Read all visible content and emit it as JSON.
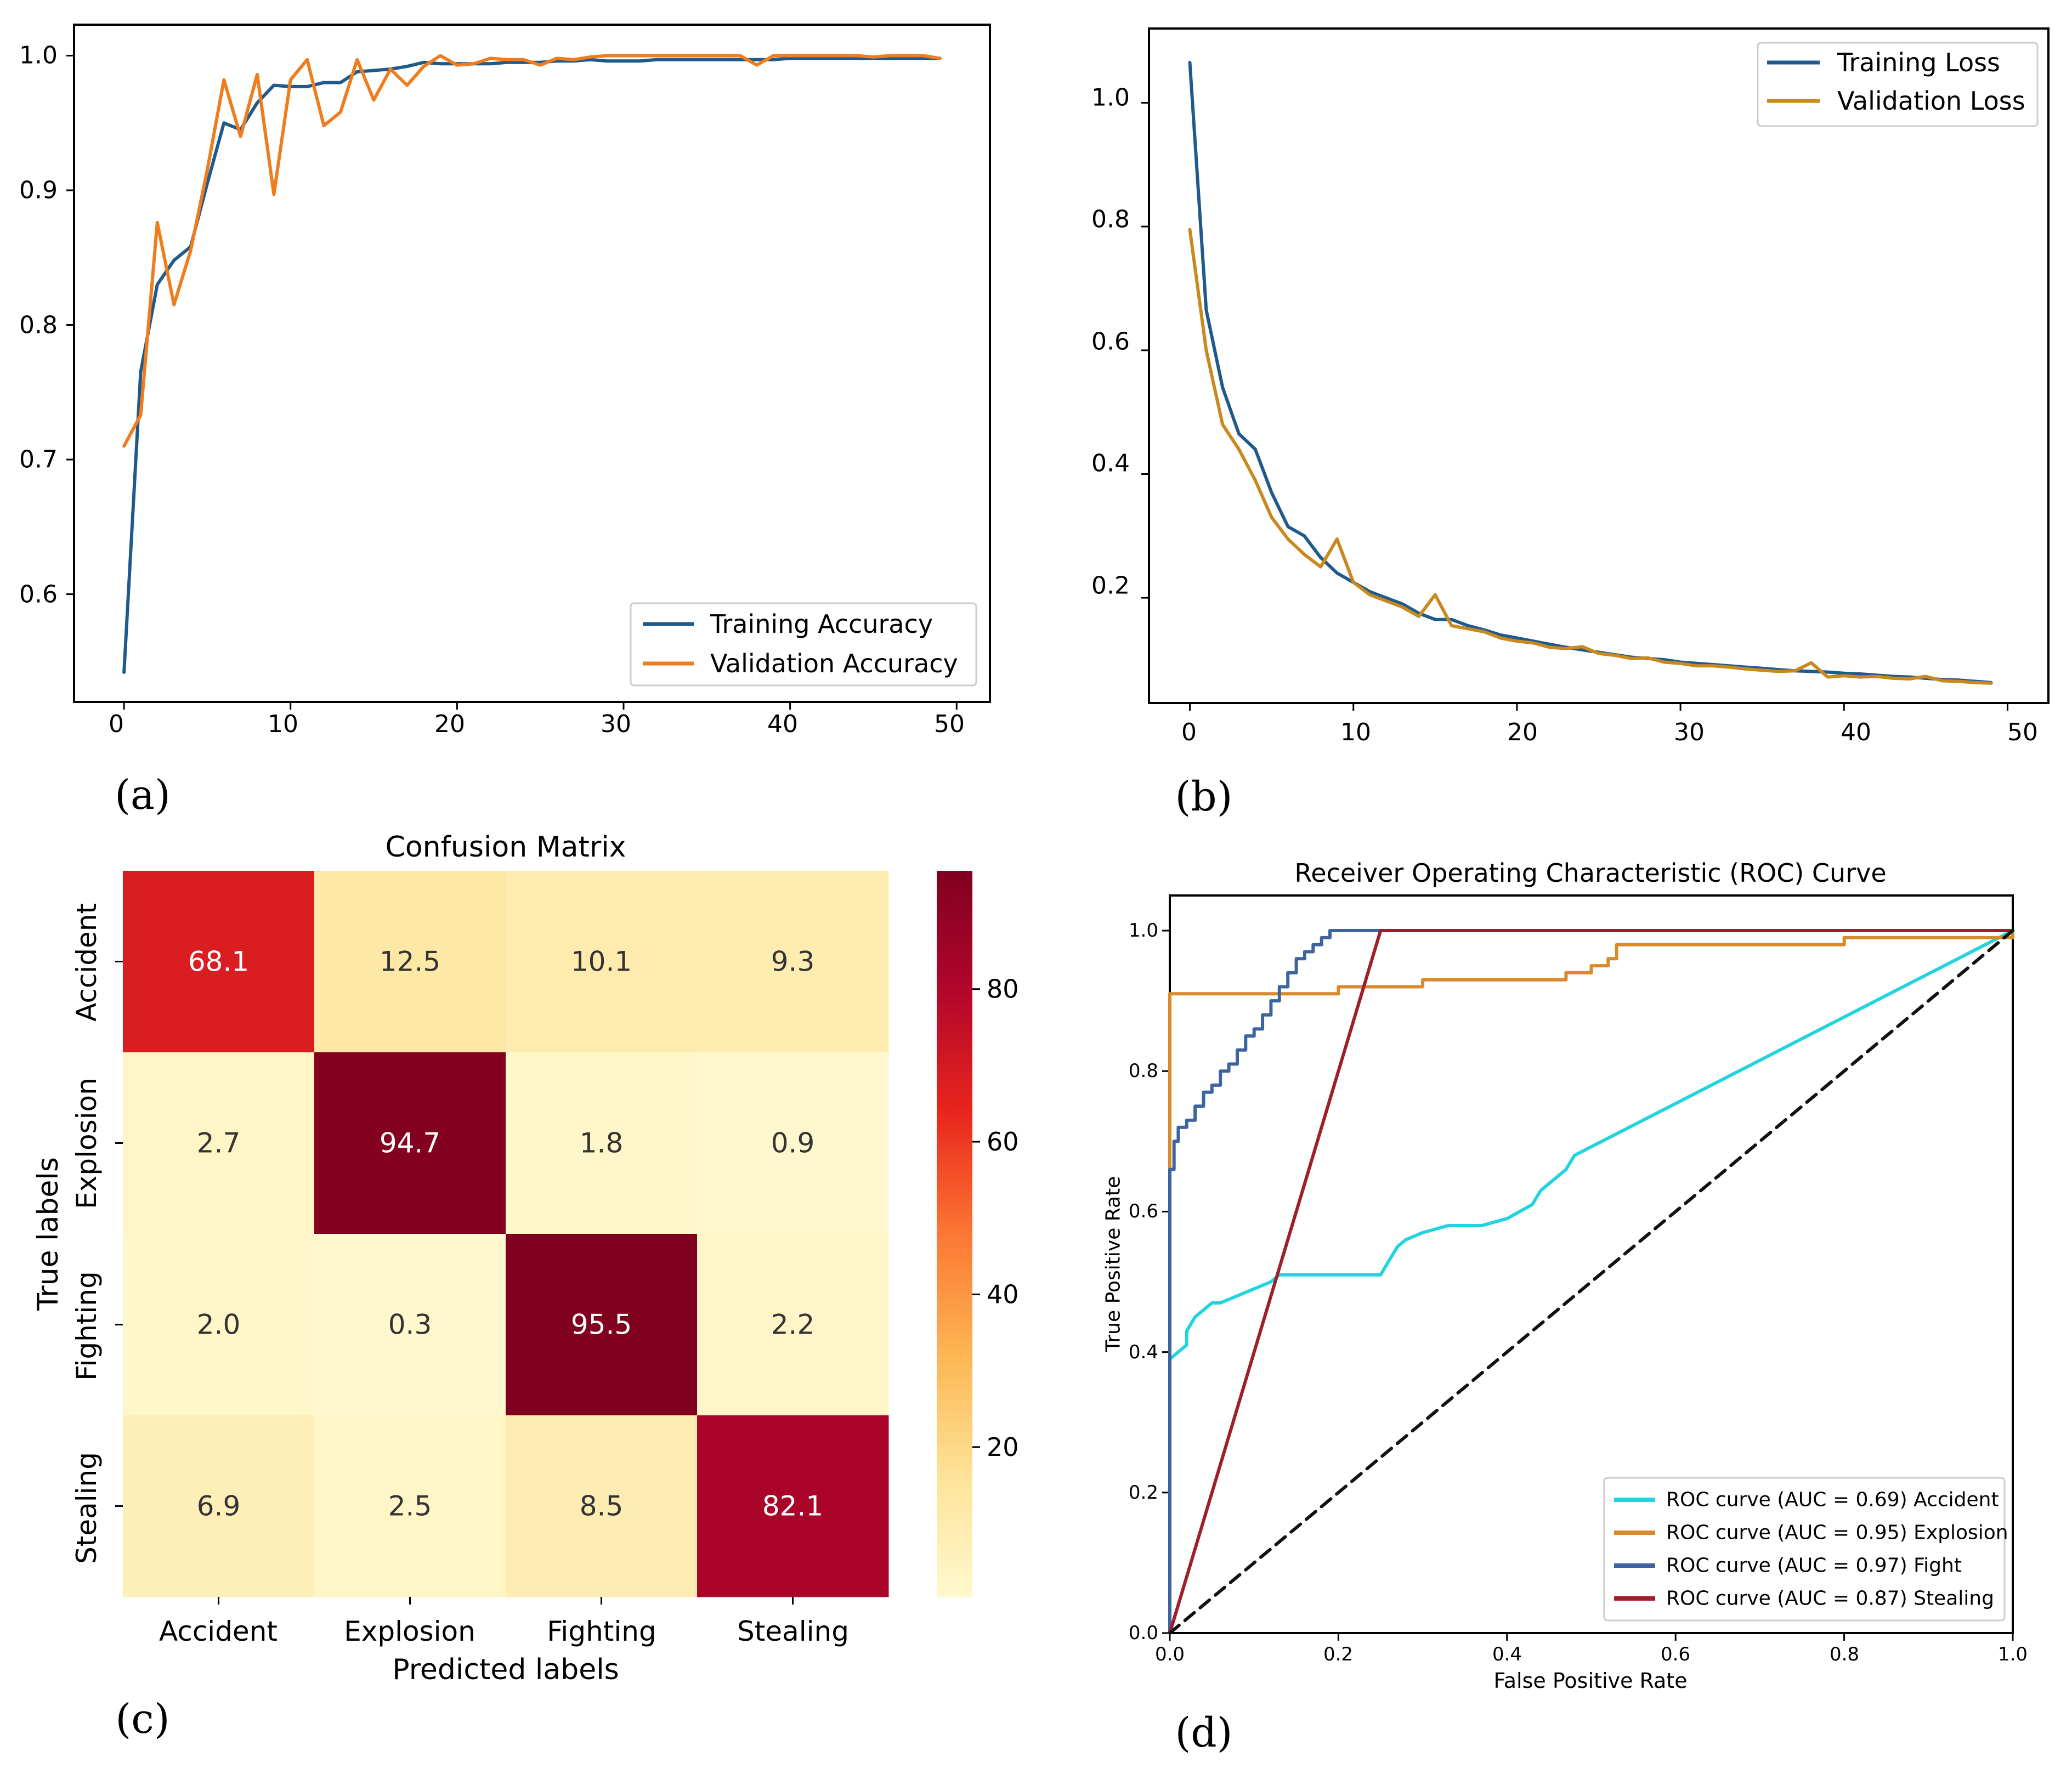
{
  "colors": {
    "train": "#1f5a8c",
    "val_acc": "#f07c1e",
    "val_loss": "#c8891f",
    "roc_accident": "#22d3e0",
    "roc_explosion": "#d98a2a",
    "roc_fight": "#3c64a0",
    "roc_stealing": "#a01e2a",
    "diagonal": "#111111",
    "cmap": [
      "#fff8cf",
      "#fde398",
      "#fdb653",
      "#fc7733",
      "#e9261d",
      "#b2062b",
      "#80001f"
    ]
  },
  "chart_data": [
    {
      "id": "a",
      "panel_label": "(a)",
      "type": "line",
      "title": "",
      "xlabel": "",
      "ylabel": "",
      "xlim": [
        -3,
        52
      ],
      "ylim": [
        0.52,
        1.023
      ],
      "xticks": [
        "0",
        "10",
        "20",
        "30",
        "40",
        "50"
      ],
      "xtick_values": [
        0,
        10,
        20,
        30,
        40,
        50
      ],
      "yticks": [
        "0.6",
        "0.7",
        "0.8",
        "0.9",
        "1.0"
      ],
      "ytick_values": [
        0.6,
        0.7,
        0.8,
        0.9,
        1.0
      ],
      "legend_position": "lower-right",
      "series": [
        {
          "name": "Training Accuracy",
          "color_key": "train",
          "x": [
            0,
            1,
            2,
            3,
            4,
            5,
            6,
            7,
            8,
            9,
            10,
            11,
            12,
            13,
            14,
            15,
            16,
            17,
            18,
            19,
            20,
            21,
            22,
            23,
            24,
            25,
            26,
            27,
            28,
            29,
            30,
            31,
            32,
            33,
            34,
            35,
            36,
            37,
            38,
            39,
            40,
            41,
            42,
            43,
            44,
            45,
            46,
            47,
            48,
            49
          ],
          "y": [
            0.542,
            0.765,
            0.83,
            0.848,
            0.858,
            0.905,
            0.95,
            0.945,
            0.965,
            0.978,
            0.977,
            0.977,
            0.98,
            0.98,
            0.988,
            0.989,
            0.99,
            0.992,
            0.995,
            0.994,
            0.994,
            0.994,
            0.994,
            0.995,
            0.995,
            0.995,
            0.996,
            0.996,
            0.997,
            0.996,
            0.996,
            0.996,
            0.997,
            0.997,
            0.997,
            0.997,
            0.997,
            0.997,
            0.997,
            0.997,
            0.998,
            0.998,
            0.998,
            0.998,
            0.998,
            0.998,
            0.998,
            0.998,
            0.998,
            0.998
          ]
        },
        {
          "name": "Validation Accuracy",
          "color_key": "val_acc",
          "x": [
            0,
            1,
            2,
            3,
            4,
            5,
            6,
            7,
            8,
            9,
            10,
            11,
            12,
            13,
            14,
            15,
            16,
            17,
            18,
            19,
            20,
            21,
            22,
            23,
            24,
            25,
            26,
            27,
            28,
            29,
            30,
            31,
            32,
            33,
            34,
            35,
            36,
            37,
            38,
            39,
            40,
            41,
            42,
            43,
            44,
            45,
            46,
            47,
            48,
            49
          ],
          "y": [
            0.71,
            0.733,
            0.876,
            0.815,
            0.855,
            0.915,
            0.982,
            0.94,
            0.986,
            0.897,
            0.982,
            0.997,
            0.948,
            0.958,
            0.997,
            0.967,
            0.99,
            0.978,
            0.992,
            1.0,
            0.993,
            0.994,
            0.998,
            0.997,
            0.997,
            0.993,
            0.998,
            0.997,
            0.999,
            1.0,
            1.0,
            1.0,
            1.0,
            1.0,
            1.0,
            1.0,
            1.0,
            1.0,
            0.993,
            1.0,
            1.0,
            1.0,
            1.0,
            1.0,
            1.0,
            0.999,
            1.0,
            1.0,
            1.0,
            0.998
          ]
        }
      ]
    },
    {
      "id": "b",
      "panel_label": "(b)",
      "type": "line",
      "title": "",
      "xlabel": "",
      "ylabel": "",
      "xlim": [
        -2.5,
        52.5
      ],
      "ylim": [
        0.03,
        1.12
      ],
      "xticks": [
        "0",
        "10",
        "20",
        "30",
        "40",
        "50"
      ],
      "xtick_values": [
        0,
        10,
        20,
        30,
        40,
        50
      ],
      "yticks": [
        "0.2",
        "0.4",
        "0.6",
        "0.8",
        "1.0"
      ],
      "ytick_values": [
        0.2,
        0.4,
        0.6,
        0.8,
        1.0
      ],
      "legend_position": "upper-right",
      "series": [
        {
          "name": "Training Loss",
          "color_key": "train",
          "x": [
            0,
            1,
            2,
            3,
            4,
            5,
            6,
            7,
            8,
            9,
            10,
            11,
            12,
            13,
            14,
            15,
            16,
            17,
            18,
            19,
            20,
            21,
            22,
            23,
            24,
            25,
            26,
            27,
            28,
            29,
            30,
            31,
            32,
            33,
            34,
            35,
            36,
            37,
            38,
            39,
            40,
            41,
            42,
            43,
            44,
            45,
            46,
            47,
            48,
            49
          ],
          "y": [
            1.065,
            0.665,
            0.54,
            0.465,
            0.44,
            0.37,
            0.315,
            0.3,
            0.265,
            0.24,
            0.225,
            0.21,
            0.2,
            0.19,
            0.175,
            0.165,
            0.165,
            0.155,
            0.148,
            0.14,
            0.135,
            0.13,
            0.125,
            0.12,
            0.116,
            0.112,
            0.108,
            0.104,
            0.102,
            0.1,
            0.096,
            0.094,
            0.092,
            0.09,
            0.088,
            0.086,
            0.084,
            0.082,
            0.081,
            0.08,
            0.078,
            0.077,
            0.075,
            0.073,
            0.072,
            0.07,
            0.068,
            0.067,
            0.065,
            0.063
          ]
        },
        {
          "name": "Validation Loss",
          "color_key": "val_loss",
          "x": [
            0,
            1,
            2,
            3,
            4,
            5,
            6,
            7,
            8,
            9,
            10,
            11,
            12,
            13,
            14,
            15,
            16,
            17,
            18,
            19,
            20,
            21,
            22,
            23,
            24,
            25,
            26,
            27,
            28,
            29,
            30,
            31,
            32,
            33,
            34,
            35,
            36,
            37,
            38,
            39,
            40,
            41,
            42,
            43,
            44,
            45,
            46,
            47,
            48,
            49
          ],
          "y": [
            0.795,
            0.6,
            0.48,
            0.44,
            0.39,
            0.33,
            0.295,
            0.27,
            0.25,
            0.295,
            0.225,
            0.205,
            0.195,
            0.185,
            0.17,
            0.205,
            0.155,
            0.15,
            0.145,
            0.135,
            0.13,
            0.127,
            0.12,
            0.118,
            0.121,
            0.11,
            0.107,
            0.102,
            0.103,
            0.096,
            0.094,
            0.09,
            0.09,
            0.088,
            0.085,
            0.083,
            0.081,
            0.082,
            0.095,
            0.072,
            0.074,
            0.072,
            0.073,
            0.07,
            0.069,
            0.073,
            0.066,
            0.065,
            0.063,
            0.062
          ]
        }
      ]
    },
    {
      "id": "c",
      "panel_label": "(c)",
      "type": "heatmap",
      "title": "Confusion Matrix",
      "xlabel": "Predicted labels",
      "ylabel": "True labels",
      "categories": [
        "Accident",
        "Explosion",
        "Fighting",
        "Stealing"
      ],
      "values": [
        [
          68.1,
          12.5,
          10.1,
          9.3
        ],
        [
          2.7,
          94.7,
          1.8,
          0.9
        ],
        [
          2.0,
          0.3,
          95.5,
          2.2
        ],
        [
          6.9,
          2.5,
          8.5,
          82.1
        ]
      ],
      "value_labels": [
        [
          "68.1",
          "12.5",
          "10.1",
          "9.3"
        ],
        [
          "2.7",
          "94.7",
          "1.8",
          "0.9"
        ],
        [
          "2.0",
          "0.3",
          "95.5",
          "2.2"
        ],
        [
          "6.9",
          "2.5",
          "8.5",
          "82.1"
        ]
      ],
      "vmin": 0.3,
      "vmax": 95.5,
      "colorbar_ticks": [
        "20",
        "40",
        "60",
        "80"
      ],
      "colorbar_tick_values": [
        20,
        40,
        60,
        80
      ]
    },
    {
      "id": "d",
      "panel_label": "(d)",
      "type": "line",
      "title": "Receiver Operating Characteristic (ROC) Curve",
      "xlabel": "False Positive Rate",
      "ylabel": "True Positive Rate",
      "xlim": [
        0,
        1
      ],
      "ylim": [
        0,
        1.05
      ],
      "xticks": [
        "0.0",
        "0.2",
        "0.4",
        "0.6",
        "0.8",
        "1.0"
      ],
      "xtick_values": [
        0,
        0.2,
        0.4,
        0.6,
        0.8,
        1.0
      ],
      "yticks": [
        "0.0",
        "0.2",
        "0.4",
        "0.6",
        "0.8",
        "1.0"
      ],
      "ytick_values": [
        0,
        0.2,
        0.4,
        0.6,
        0.8,
        1.0
      ],
      "legend_position": "lower-right",
      "series": [
        {
          "name": "ROC curve (AUC = 0.69) Accident",
          "color_key": "roc_accident",
          "x": [
            0,
            0,
            0.01,
            0.02,
            0.02,
            0.03,
            0.04,
            0.05,
            0.06,
            0.08,
            0.1,
            0.12,
            0.13,
            0.2,
            0.25,
            0.26,
            0.27,
            0.28,
            0.3,
            0.33,
            0.37,
            0.4,
            0.43,
            0.44,
            0.45,
            0.47,
            0.48,
            1.0
          ],
          "y": [
            0,
            0.39,
            0.4,
            0.41,
            0.43,
            0.45,
            0.46,
            0.47,
            0.47,
            0.48,
            0.49,
            0.5,
            0.51,
            0.51,
            0.51,
            0.53,
            0.55,
            0.56,
            0.57,
            0.58,
            0.58,
            0.59,
            0.61,
            0.63,
            0.64,
            0.66,
            0.68,
            1.0
          ]
        },
        {
          "name": "ROC curve (AUC = 0.95) Explosion",
          "color_key": "roc_explosion",
          "x": [
            0,
            0,
            0.1,
            0.2,
            0.3,
            0.35,
            0.42,
            0.47,
            0.5,
            0.52,
            0.53,
            0.6,
            0.8,
            1.0
          ],
          "y": [
            0,
            0.91,
            0.91,
            0.92,
            0.93,
            0.93,
            0.93,
            0.94,
            0.95,
            0.96,
            0.98,
            0.98,
            0.99,
            1.0
          ],
          "step": true
        },
        {
          "name": "ROC curve (AUC = 0.97) Fight",
          "color_key": "roc_fight",
          "x": [
            0,
            0,
            0.005,
            0.01,
            0.02,
            0.03,
            0.04,
            0.05,
            0.06,
            0.07,
            0.08,
            0.09,
            0.1,
            0.11,
            0.12,
            0.13,
            0.14,
            0.15,
            0.16,
            0.17,
            0.18,
            0.19,
            0.2,
            1.0
          ],
          "y": [
            0,
            0.66,
            0.7,
            0.72,
            0.73,
            0.75,
            0.77,
            0.78,
            0.8,
            0.81,
            0.83,
            0.85,
            0.86,
            0.88,
            0.9,
            0.92,
            0.94,
            0.96,
            0.97,
            0.98,
            0.99,
            1.0,
            1.0,
            1.0
          ],
          "step": true
        },
        {
          "name": "ROC curve (AUC = 0.87) Stealing",
          "color_key": "roc_stealing",
          "x": [
            0,
            0.25,
            1.0
          ],
          "y": [
            0,
            1.0,
            1.0
          ]
        },
        {
          "name": "",
          "color_key": "diagonal",
          "dashed": true,
          "x": [
            0,
            1
          ],
          "y": [
            0,
            1
          ]
        }
      ]
    }
  ]
}
